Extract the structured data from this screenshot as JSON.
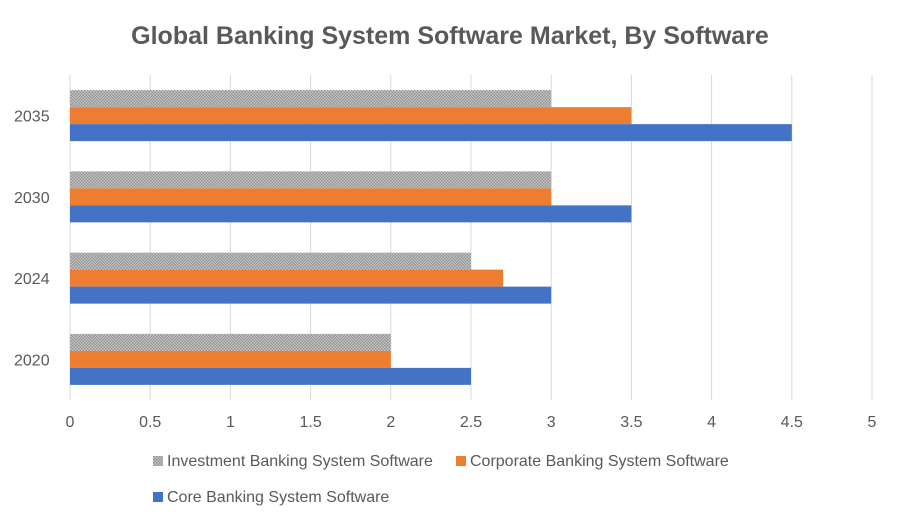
{
  "chart_data": {
    "type": "bar",
    "orientation": "horizontal",
    "title": "Global Banking System Software Market, By Software",
    "categories": [
      "2020",
      "2024",
      "2030",
      "2035"
    ],
    "series": [
      {
        "name": "Investment Banking System Software",
        "color": "#a5a5a5",
        "pattern": "hatched",
        "values": [
          2.0,
          2.5,
          3.0,
          3.0
        ]
      },
      {
        "name": "Corporate Banking System Software",
        "color": "#ed7d31",
        "values": [
          2.0,
          2.7,
          3.0,
          3.5
        ]
      },
      {
        "name": "Core Banking System Software",
        "color": "#4472c4",
        "values": [
          2.5,
          3.0,
          3.5,
          4.5
        ]
      }
    ],
    "x_ticks": [
      "0",
      "0.5",
      "1",
      "1.5",
      "2",
      "2.5",
      "3",
      "3.5",
      "4",
      "4.5",
      "5"
    ],
    "xlim": [
      0,
      5
    ],
    "grid": true,
    "legend_position": "bottom"
  }
}
